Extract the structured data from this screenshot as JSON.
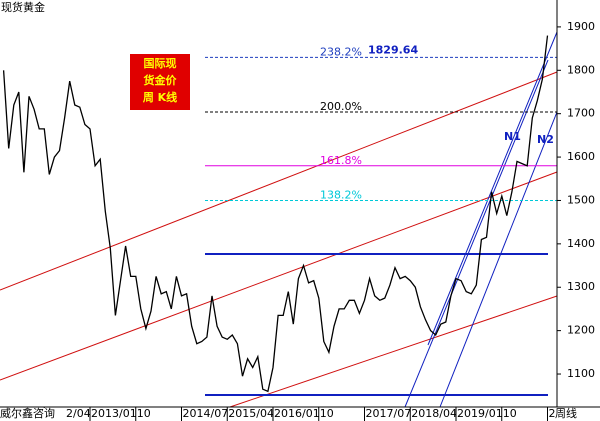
{
  "chart_data": {
    "type": "line",
    "title": "现货黄金",
    "source": "威尔鑫咨询",
    "period": "周线",
    "badge": [
      "国际现",
      "货金价",
      "周 K线"
    ],
    "annotations": [
      "N1",
      "N2"
    ],
    "x": [
      "2011/08",
      "2011/09",
      "2011/10",
      "2011/11",
      "2011/12",
      "2012/01",
      "2012/02",
      "2012/03",
      "2012/04",
      "2012/05",
      "2012/06",
      "2012/07",
      "2012/08",
      "2012/09",
      "2012/10",
      "2012/11",
      "2012/12",
      "2013/01",
      "2013/02",
      "2013/03",
      "2013/04",
      "2013/05",
      "2013/06",
      "2013/07",
      "2013/08",
      "2013/09",
      "2013/10",
      "2013/11",
      "2013/12",
      "2014/01",
      "2014/02",
      "2014/03",
      "2014/04",
      "2014/05",
      "2014/06",
      "2014/07",
      "2014/08",
      "2014/09",
      "2014/10",
      "2014/11",
      "2014/12",
      "2015/01",
      "2015/02",
      "2015/03",
      "2015/04",
      "2015/05",
      "2015/06",
      "2015/07",
      "2015/08",
      "2015/09",
      "2015/10",
      "2015/11",
      "2015/12",
      "2016/01",
      "2016/02",
      "2016/03",
      "2016/04",
      "2016/05",
      "2016/06",
      "2016/07",
      "2016/08",
      "2016/09",
      "2016/10",
      "2016/11",
      "2016/12",
      "2017/01",
      "2017/02",
      "2017/03",
      "2017/04",
      "2017/05",
      "2017/06",
      "2017/07",
      "2017/08",
      "2017/09",
      "2017/10",
      "2017/11",
      "2017/12",
      "2018/01",
      "2018/02",
      "2018/03",
      "2018/04",
      "2018/05",
      "2018/06",
      "2018/07",
      "2018/08",
      "2018/09",
      "2018/10",
      "2018/11",
      "2018/12",
      "2019/01",
      "2019/02",
      "2019/03",
      "2019/04",
      "2019/05",
      "2019/06",
      "2019/07",
      "2019/08",
      "2019/09",
      "2019/10",
      "2019/11",
      "2019/12",
      "2020/01",
      "2020/02",
      "2020/03",
      "2020/04",
      "2020/05",
      "2020/06",
      "2020/07"
    ],
    "values": [
      1800,
      1620,
      1720,
      1750,
      1565,
      1740,
      1710,
      1665,
      1665,
      1560,
      1600,
      1615,
      1690,
      1775,
      1720,
      1715,
      1675,
      1665,
      1580,
      1595,
      1475,
      1390,
      1235,
      1315,
      1395,
      1325,
      1325,
      1250,
      1205,
      1245,
      1325,
      1285,
      1290,
      1250,
      1325,
      1280,
      1285,
      1210,
      1170,
      1175,
      1185,
      1280,
      1210,
      1185,
      1180,
      1190,
      1170,
      1095,
      1135,
      1115,
      1140,
      1065,
      1060,
      1115,
      1235,
      1235,
      1290,
      1215,
      1320,
      1350,
      1310,
      1315,
      1275,
      1175,
      1150,
      1210,
      1250,
      1250,
      1270,
      1270,
      1240,
      1270,
      1320,
      1280,
      1270,
      1275,
      1305,
      1345,
      1320,
      1325,
      1315,
      1300,
      1255,
      1225,
      1200,
      1190,
      1215,
      1220,
      1280,
      1320,
      1315,
      1290,
      1285,
      1305,
      1410,
      1415,
      1520,
      1470,
      1510,
      1465,
      1520,
      1590,
      1585,
      1580,
      1690,
      1730,
      1780,
      1880
    ],
    "color": "#000000",
    "ylim": [
      1024,
      1962
    ],
    "yticks": [
      1100,
      1200,
      1300,
      1400,
      1500,
      1600,
      1700,
      1800,
      1900
    ],
    "xticks": [
      {
        "value": "2012/04",
        "label": "2/04"
      },
      "2013/01",
      {
        "value": "2013/10",
        "label": "10"
      },
      "2014/07",
      "2015/04",
      "2016/01",
      {
        "value": "2016/10",
        "label": "10"
      },
      "2017/07",
      "2018/04",
      "2019/01",
      {
        "value": "2019/10",
        "label": "10"
      },
      {
        "value": "2020/07",
        "label": "2"
      }
    ],
    "fib_levels": [
      {
        "ratio": "238.2%",
        "value": 1829.64,
        "color": "#1f3fbf",
        "dashed": true
      },
      {
        "ratio": "200.0%",
        "value": 1704,
        "color": "#000000",
        "dashed": true
      },
      {
        "ratio": "161.8%",
        "value": 1580,
        "color": "#e000e0",
        "dashed": false
      },
      {
        "ratio": "138.2%",
        "value": 1500,
        "color": "#00c8d8",
        "dashed": true
      }
    ]
  }
}
